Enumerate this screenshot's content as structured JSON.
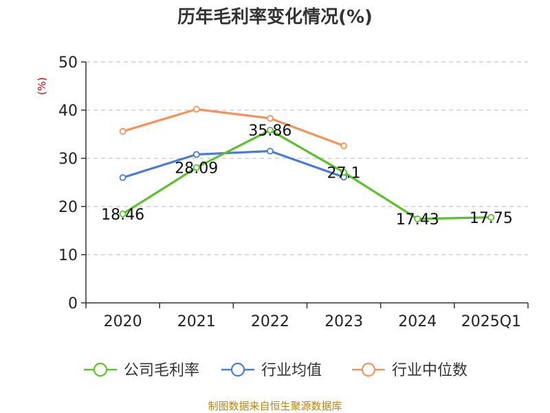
{
  "chart_data": {
    "type": "line",
    "title": "历年毛利率变化情况(%)",
    "ylabel": "(%)",
    "xlabel": "",
    "categories": [
      "2020",
      "2021",
      "2022",
      "2023",
      "2024",
      "2025Q1"
    ],
    "ylim": [
      0,
      50
    ],
    "yticks": [
      0,
      10,
      20,
      30,
      40,
      50
    ],
    "grid": true,
    "legend_position": "bottom",
    "series": [
      {
        "name": "公司毛利率",
        "color": "#5cc12d",
        "values": [
          18.46,
          28.09,
          35.86,
          27.1,
          17.43,
          17.75
        ],
        "labels": [
          "18.46",
          "28.09",
          "35.86",
          "27.1",
          "17.43",
          "17.75"
        ]
      },
      {
        "name": "行业均值",
        "color": "#4a7bd8",
        "values": [
          26.0,
          30.8,
          31.5,
          26.1,
          null,
          null
        ]
      },
      {
        "name": "行业中位数",
        "color": "#f5925a",
        "values": [
          35.6,
          40.2,
          38.3,
          32.6,
          null,
          null
        ]
      }
    ]
  },
  "source": "制图数据来自恒生聚源数据库"
}
